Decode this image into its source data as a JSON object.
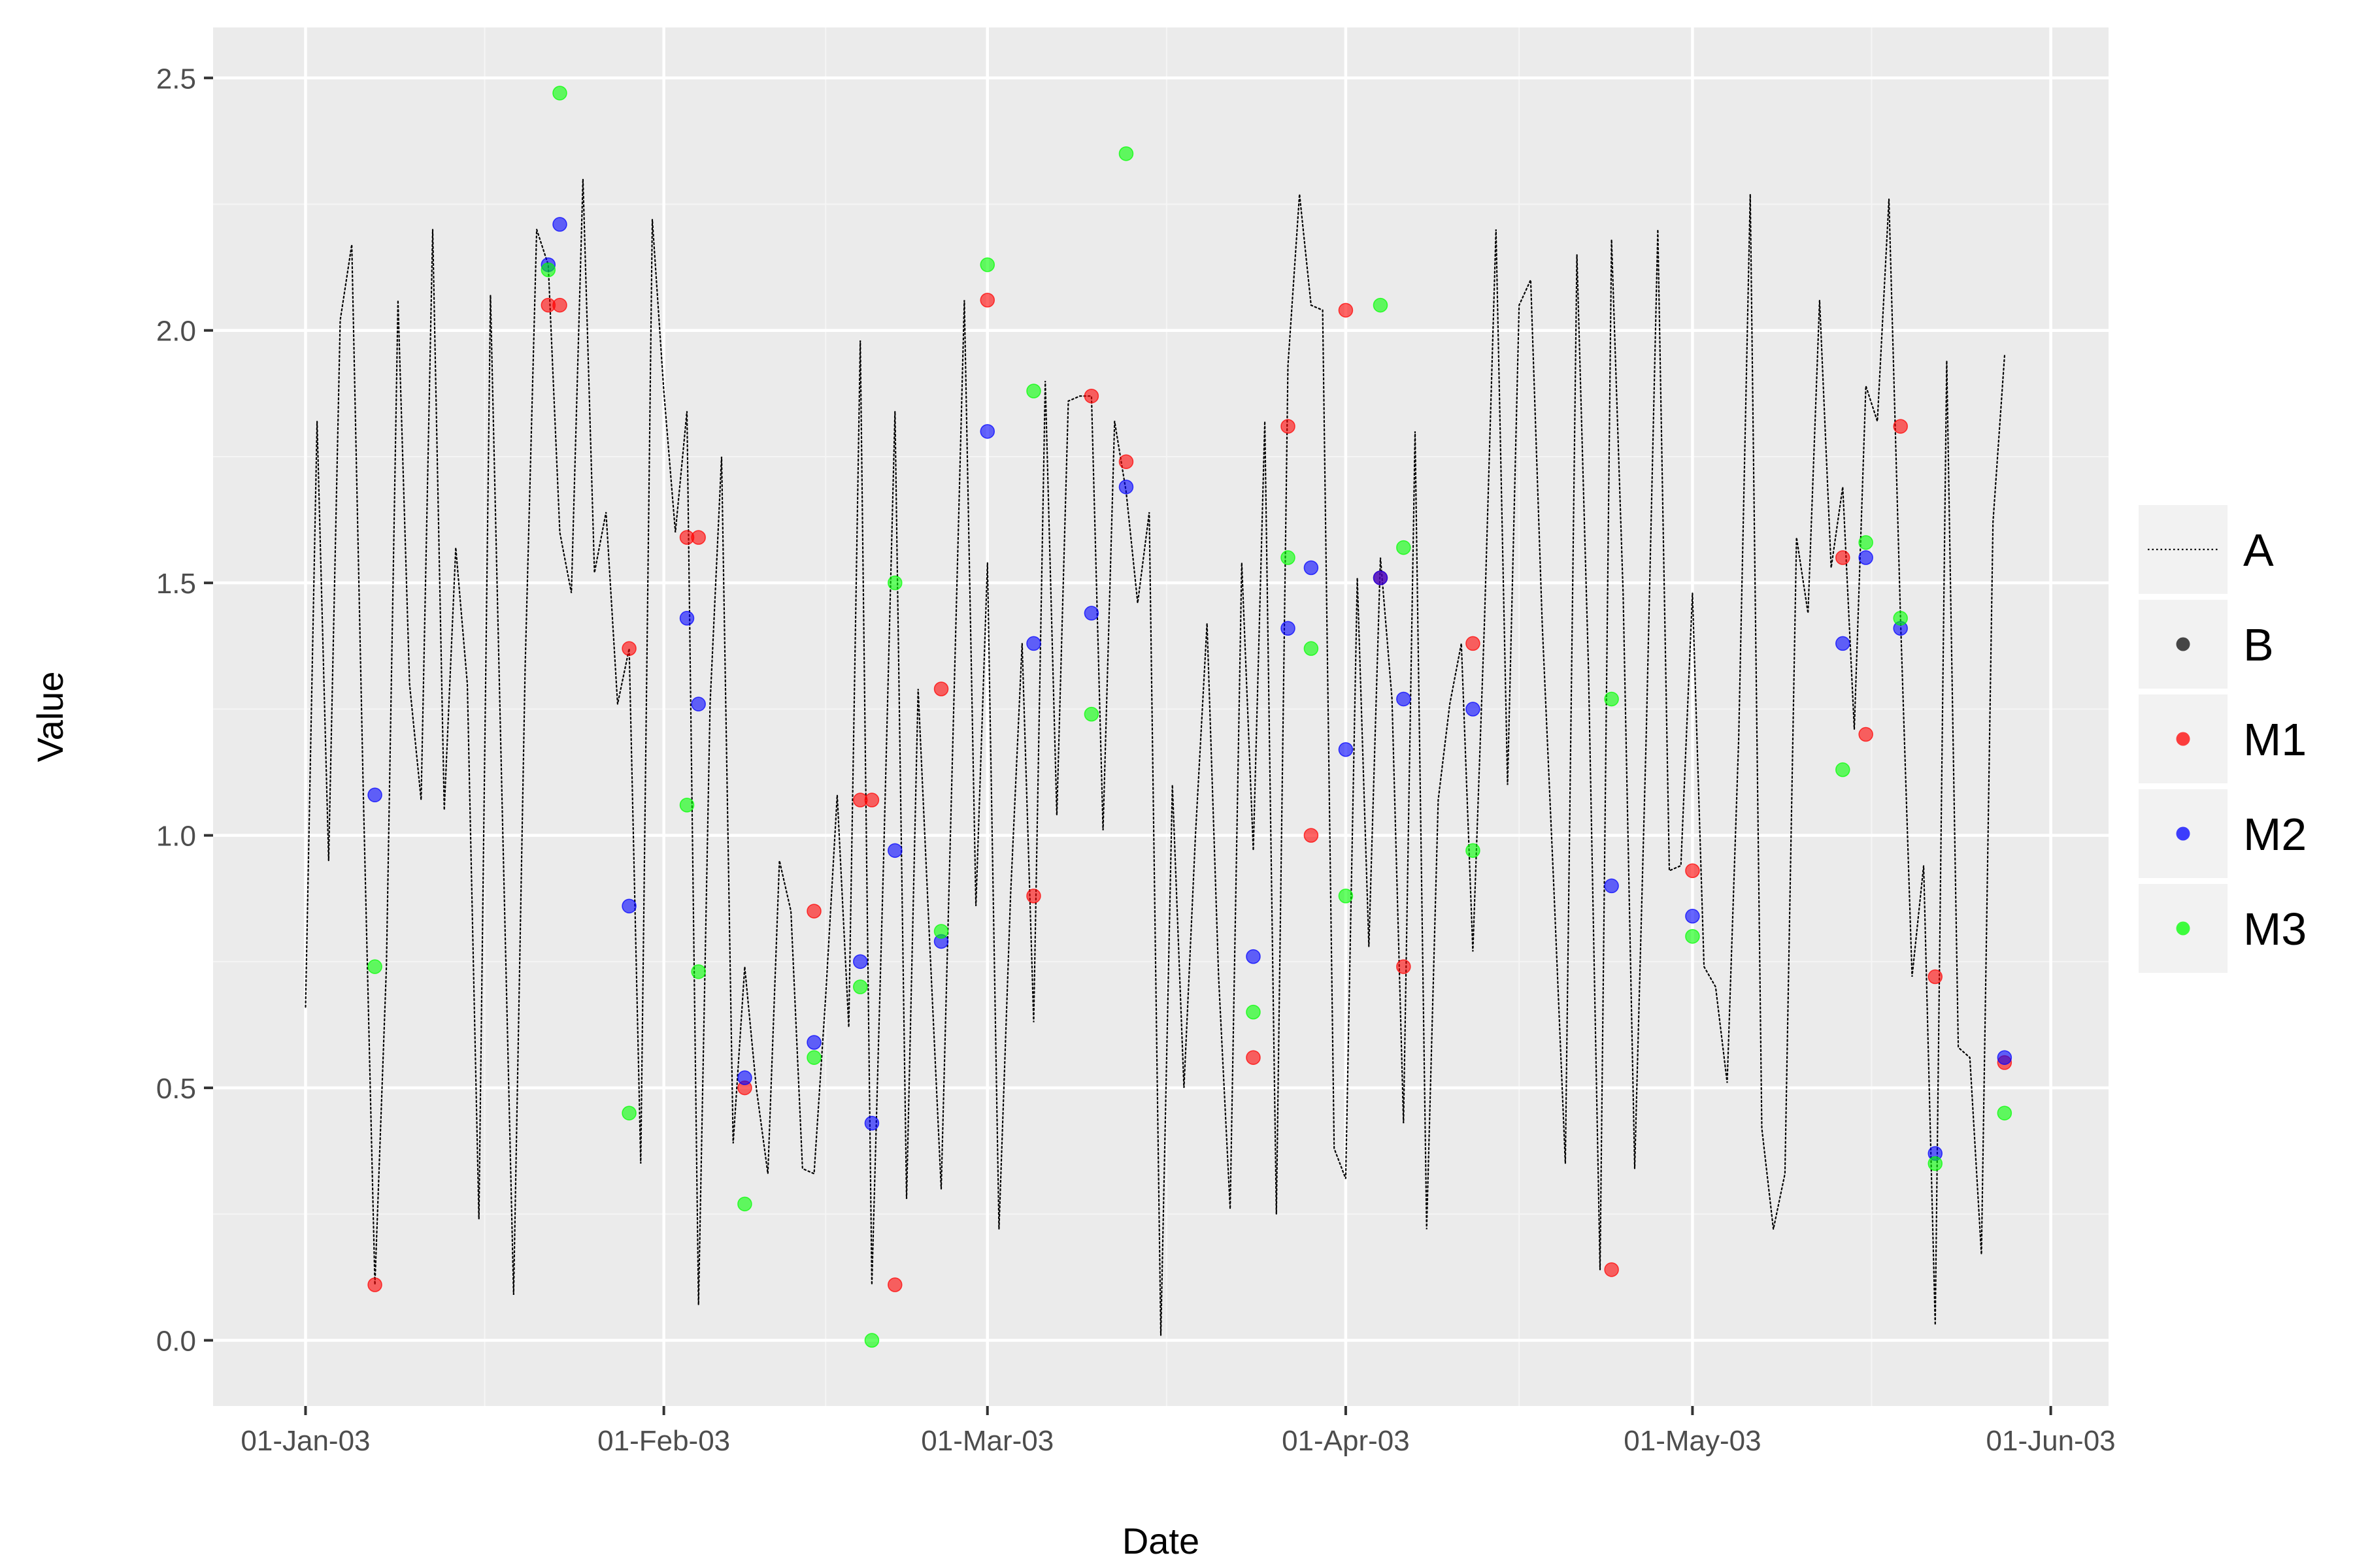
{
  "chart_data": {
    "type": "scatter",
    "title": "",
    "xlabel": "Date",
    "ylabel": "Value",
    "x_tick_labels": [
      "01-Jan-03",
      "01-Feb-03",
      "01-Mar-03",
      "01-Apr-03",
      "01-May-03",
      "01-Jun-03"
    ],
    "x_tick_dates": [
      "2003-01-01",
      "2003-02-01",
      "2003-03-01",
      "2003-04-01",
      "2003-05-01",
      "2003-06-01"
    ],
    "y_tick_labels": [
      "0.0",
      "0.5",
      "1.0",
      "1.5",
      "2.0",
      "2.5"
    ],
    "y_tick_values": [
      0,
      0.5,
      1.0,
      1.5,
      2.0,
      2.5
    ],
    "xlim": [
      "2002-12-24",
      "2003-06-06"
    ],
    "ylim": [
      -0.13,
      2.6
    ],
    "grid": true,
    "legend_position": "right",
    "colors": {
      "panel": "#ebebeb",
      "grid_major": "#ffffff",
      "grid_minor": "#f5f5f5",
      "A": "#000000",
      "B": "#333333",
      "M1": "#ff0000",
      "M2": "#0000ff",
      "M3": "#00ff00"
    },
    "legend": [
      {
        "key": "A",
        "label": "A",
        "glyph": "dotted-line"
      },
      {
        "key": "B",
        "label": "B",
        "glyph": "point"
      },
      {
        "key": "M1",
        "label": "M1",
        "glyph": "point"
      },
      {
        "key": "M2",
        "label": "M2",
        "glyph": "point"
      },
      {
        "key": "M3",
        "label": "M3",
        "glyph": "point"
      }
    ],
    "series": [
      {
        "name": "A",
        "style": "dotted-line",
        "points": [
          [
            "2003-01-01",
            0.66
          ],
          [
            "2003-01-02",
            1.82
          ],
          [
            "2003-01-03",
            0.95
          ],
          [
            "2003-01-04",
            2.02
          ],
          [
            "2003-01-05",
            2.17
          ],
          [
            "2003-01-06",
            1.08
          ],
          [
            "2003-01-07",
            0.11
          ],
          [
            "2003-01-08",
            0.74
          ],
          [
            "2003-01-09",
            2.06
          ],
          [
            "2003-01-10",
            1.3
          ],
          [
            "2003-01-11",
            1.07
          ],
          [
            "2003-01-12",
            2.2
          ],
          [
            "2003-01-13",
            1.05
          ],
          [
            "2003-01-14",
            1.57
          ],
          [
            "2003-01-15",
            1.3
          ],
          [
            "2003-01-16",
            0.24
          ],
          [
            "2003-01-17",
            2.07
          ],
          [
            "2003-01-18",
            1.07
          ],
          [
            "2003-01-19",
            0.09
          ],
          [
            "2003-01-20",
            1.33
          ],
          [
            "2003-01-21",
            2.2
          ],
          [
            "2003-01-22",
            2.13
          ],
          [
            "2003-01-23",
            1.6
          ],
          [
            "2003-01-24",
            1.48
          ],
          [
            "2003-01-25",
            2.3
          ],
          [
            "2003-01-26",
            1.52
          ],
          [
            "2003-01-27",
            1.64
          ],
          [
            "2003-01-28",
            1.26
          ],
          [
            "2003-01-29",
            1.37
          ],
          [
            "2003-01-30",
            0.35
          ],
          [
            "2003-01-31",
            2.22
          ],
          [
            "2003-02-01",
            1.88
          ],
          [
            "2003-02-02",
            1.6
          ],
          [
            "2003-02-03",
            1.84
          ],
          [
            "2003-02-04",
            0.07
          ],
          [
            "2003-02-05",
            1.26
          ],
          [
            "2003-02-06",
            1.75
          ],
          [
            "2003-02-07",
            0.39
          ],
          [
            "2003-02-08",
            0.74
          ],
          [
            "2003-02-09",
            0.5
          ],
          [
            "2003-02-10",
            0.33
          ],
          [
            "2003-02-11",
            0.95
          ],
          [
            "2003-02-12",
            0.85
          ],
          [
            "2003-02-13",
            0.34
          ],
          [
            "2003-02-14",
            0.33
          ],
          [
            "2003-02-15",
            0.68
          ],
          [
            "2003-02-16",
            1.08
          ],
          [
            "2003-02-17",
            0.62
          ],
          [
            "2003-02-18",
            1.98
          ],
          [
            "2003-02-19",
            0.11
          ],
          [
            "2003-02-20",
            0.94
          ],
          [
            "2003-02-21",
            1.84
          ],
          [
            "2003-02-22",
            0.28
          ],
          [
            "2003-02-23",
            1.29
          ],
          [
            "2003-02-24",
            0.79
          ],
          [
            "2003-02-25",
            0.3
          ],
          [
            "2003-02-26",
            1.18
          ],
          [
            "2003-02-27",
            2.06
          ],
          [
            "2003-02-28",
            0.86
          ],
          [
            "2003-03-01",
            1.54
          ],
          [
            "2003-03-02",
            0.22
          ],
          [
            "2003-03-03",
            0.88
          ],
          [
            "2003-03-04",
            1.38
          ],
          [
            "2003-03-05",
            0.63
          ],
          [
            "2003-03-06",
            1.9
          ],
          [
            "2003-03-07",
            1.04
          ],
          [
            "2003-03-08",
            1.86
          ],
          [
            "2003-03-09",
            1.87
          ],
          [
            "2003-03-10",
            1.87
          ],
          [
            "2003-03-11",
            1.01
          ],
          [
            "2003-03-12",
            1.82
          ],
          [
            "2003-03-13",
            1.68
          ],
          [
            "2003-03-14",
            1.46
          ],
          [
            "2003-03-15",
            1.64
          ],
          [
            "2003-03-16",
            0.01
          ],
          [
            "2003-03-17",
            1.1
          ],
          [
            "2003-03-18",
            0.5
          ],
          [
            "2003-03-19",
            1.0
          ],
          [
            "2003-03-20",
            1.42
          ],
          [
            "2003-03-21",
            0.72
          ],
          [
            "2003-03-22",
            0.26
          ],
          [
            "2003-03-23",
            1.54
          ],
          [
            "2003-03-24",
            0.97
          ],
          [
            "2003-03-25",
            1.82
          ],
          [
            "2003-03-26",
            0.25
          ],
          [
            "2003-03-27",
            1.93
          ],
          [
            "2003-03-28",
            2.27
          ],
          [
            "2003-03-29",
            2.05
          ],
          [
            "2003-03-30",
            2.04
          ],
          [
            "2003-03-31",
            0.38
          ],
          [
            "2003-04-01",
            0.32
          ],
          [
            "2003-04-02",
            1.51
          ],
          [
            "2003-04-03",
            0.78
          ],
          [
            "2003-04-04",
            1.55
          ],
          [
            "2003-04-05",
            1.27
          ],
          [
            "2003-04-06",
            0.43
          ],
          [
            "2003-04-07",
            1.8
          ],
          [
            "2003-04-08",
            0.22
          ],
          [
            "2003-04-09",
            1.07
          ],
          [
            "2003-04-10",
            1.26
          ],
          [
            "2003-04-11",
            1.38
          ],
          [
            "2003-04-12",
            0.77
          ],
          [
            "2003-04-13",
            1.42
          ],
          [
            "2003-04-14",
            2.2
          ],
          [
            "2003-04-15",
            1.1
          ],
          [
            "2003-04-16",
            2.05
          ],
          [
            "2003-04-17",
            2.1
          ],
          [
            "2003-04-18",
            1.42
          ],
          [
            "2003-04-19",
            0.9
          ],
          [
            "2003-04-20",
            0.35
          ],
          [
            "2003-04-21",
            2.15
          ],
          [
            "2003-04-22",
            1.33
          ],
          [
            "2003-04-23",
            0.14
          ],
          [
            "2003-04-24",
            2.18
          ],
          [
            "2003-04-25",
            1.48
          ],
          [
            "2003-04-26",
            0.34
          ],
          [
            "2003-04-27",
            1.2
          ],
          [
            "2003-04-28",
            2.2
          ],
          [
            "2003-04-29",
            0.93
          ],
          [
            "2003-04-30",
            0.94
          ],
          [
            "2003-05-01",
            1.48
          ],
          [
            "2003-05-02",
            0.74
          ],
          [
            "2003-05-03",
            0.7
          ],
          [
            "2003-05-04",
            0.51
          ],
          [
            "2003-05-05",
            1.19
          ],
          [
            "2003-05-06",
            2.27
          ],
          [
            "2003-05-07",
            0.42
          ],
          [
            "2003-05-08",
            0.22
          ],
          [
            "2003-05-09",
            0.33
          ],
          [
            "2003-05-10",
            1.59
          ],
          [
            "2003-05-11",
            1.44
          ],
          [
            "2003-05-12",
            2.06
          ],
          [
            "2003-05-13",
            1.53
          ],
          [
            "2003-05-14",
            1.69
          ],
          [
            "2003-05-15",
            1.21
          ],
          [
            "2003-05-16",
            1.89
          ],
          [
            "2003-05-17",
            1.82
          ],
          [
            "2003-05-18",
            2.26
          ],
          [
            "2003-05-19",
            1.43
          ],
          [
            "2003-05-20",
            0.72
          ],
          [
            "2003-05-21",
            0.94
          ],
          [
            "2003-05-22",
            0.03
          ],
          [
            "2003-05-23",
            1.94
          ],
          [
            "2003-05-24",
            0.58
          ],
          [
            "2003-05-25",
            0.56
          ],
          [
            "2003-05-26",
            0.17
          ],
          [
            "2003-05-27",
            1.62
          ],
          [
            "2003-05-28",
            1.95
          ]
        ]
      },
      {
        "name": "B",
        "style": "point",
        "points": []
      },
      {
        "name": "M1",
        "style": "point",
        "points": [
          [
            "2003-01-07",
            0.11
          ],
          [
            "2003-01-22",
            2.05
          ],
          [
            "2003-01-23",
            2.05
          ],
          [
            "2003-01-29",
            1.37
          ],
          [
            "2003-02-03",
            1.59
          ],
          [
            "2003-02-04",
            1.59
          ],
          [
            "2003-02-08",
            0.5
          ],
          [
            "2003-02-14",
            0.85
          ],
          [
            "2003-02-18",
            1.07
          ],
          [
            "2003-02-19",
            1.07
          ],
          [
            "2003-02-21",
            0.11
          ],
          [
            "2003-02-25",
            1.29
          ],
          [
            "2003-03-01",
            2.06
          ],
          [
            "2003-03-05",
            0.88
          ],
          [
            "2003-03-10",
            1.87
          ],
          [
            "2003-03-13",
            1.74
          ],
          [
            "2003-03-24",
            0.56
          ],
          [
            "2003-03-27",
            1.81
          ],
          [
            "2003-03-29",
            1.0
          ],
          [
            "2003-04-01",
            2.04
          ],
          [
            "2003-04-04",
            1.51
          ],
          [
            "2003-04-06",
            0.74
          ],
          [
            "2003-04-12",
            1.38
          ],
          [
            "2003-04-24",
            0.14
          ],
          [
            "2003-05-01",
            0.93
          ],
          [
            "2003-05-14",
            1.55
          ],
          [
            "2003-05-16",
            1.2
          ],
          [
            "2003-05-19",
            1.81
          ],
          [
            "2003-05-22",
            0.72
          ],
          [
            "2003-05-28",
            0.55
          ]
        ]
      },
      {
        "name": "M2",
        "style": "point",
        "points": [
          [
            "2003-01-07",
            1.08
          ],
          [
            "2003-01-22",
            2.13
          ],
          [
            "2003-01-23",
            2.21
          ],
          [
            "2003-01-29",
            0.86
          ],
          [
            "2003-02-03",
            1.43
          ],
          [
            "2003-02-04",
            1.26
          ],
          [
            "2003-02-08",
            0.52
          ],
          [
            "2003-02-14",
            0.59
          ],
          [
            "2003-02-18",
            0.75
          ],
          [
            "2003-02-19",
            0.43
          ],
          [
            "2003-02-21",
            0.97
          ],
          [
            "2003-02-25",
            0.79
          ],
          [
            "2003-03-01",
            1.8
          ],
          [
            "2003-03-05",
            1.38
          ],
          [
            "2003-03-10",
            1.44
          ],
          [
            "2003-03-13",
            1.69
          ],
          [
            "2003-03-24",
            0.76
          ],
          [
            "2003-03-27",
            1.41
          ],
          [
            "2003-03-29",
            1.53
          ],
          [
            "2003-04-01",
            1.17
          ],
          [
            "2003-04-04",
            1.51
          ],
          [
            "2003-04-06",
            1.27
          ],
          [
            "2003-04-12",
            1.25
          ],
          [
            "2003-04-24",
            0.9
          ],
          [
            "2003-05-01",
            0.84
          ],
          [
            "2003-05-14",
            1.38
          ],
          [
            "2003-05-16",
            1.55
          ],
          [
            "2003-05-19",
            1.41
          ],
          [
            "2003-05-22",
            0.37
          ],
          [
            "2003-05-28",
            0.56
          ]
        ]
      },
      {
        "name": "M3",
        "style": "point",
        "points": [
          [
            "2003-01-07",
            0.74
          ],
          [
            "2003-01-22",
            2.12
          ],
          [
            "2003-01-23",
            2.47
          ],
          [
            "2003-01-29",
            0.45
          ],
          [
            "2003-02-03",
            1.06
          ],
          [
            "2003-02-04",
            0.73
          ],
          [
            "2003-02-08",
            0.27
          ],
          [
            "2003-02-14",
            0.56
          ],
          [
            "2003-02-18",
            0.7
          ],
          [
            "2003-02-19",
            0.0
          ],
          [
            "2003-02-21",
            1.5
          ],
          [
            "2003-02-25",
            0.81
          ],
          [
            "2003-03-01",
            2.13
          ],
          [
            "2003-03-05",
            1.88
          ],
          [
            "2003-03-10",
            1.24
          ],
          [
            "2003-03-13",
            2.35
          ],
          [
            "2003-03-24",
            0.65
          ],
          [
            "2003-03-27",
            1.55
          ],
          [
            "2003-03-29",
            1.37
          ],
          [
            "2003-04-01",
            0.88
          ],
          [
            "2003-04-04",
            2.05
          ],
          [
            "2003-04-06",
            1.57
          ],
          [
            "2003-04-12",
            0.97
          ],
          [
            "2003-04-24",
            1.27
          ],
          [
            "2003-05-01",
            0.8
          ],
          [
            "2003-05-14",
            1.13
          ],
          [
            "2003-05-16",
            1.58
          ],
          [
            "2003-05-19",
            1.43
          ],
          [
            "2003-05-22",
            0.35
          ],
          [
            "2003-05-28",
            0.45
          ]
        ]
      }
    ]
  }
}
